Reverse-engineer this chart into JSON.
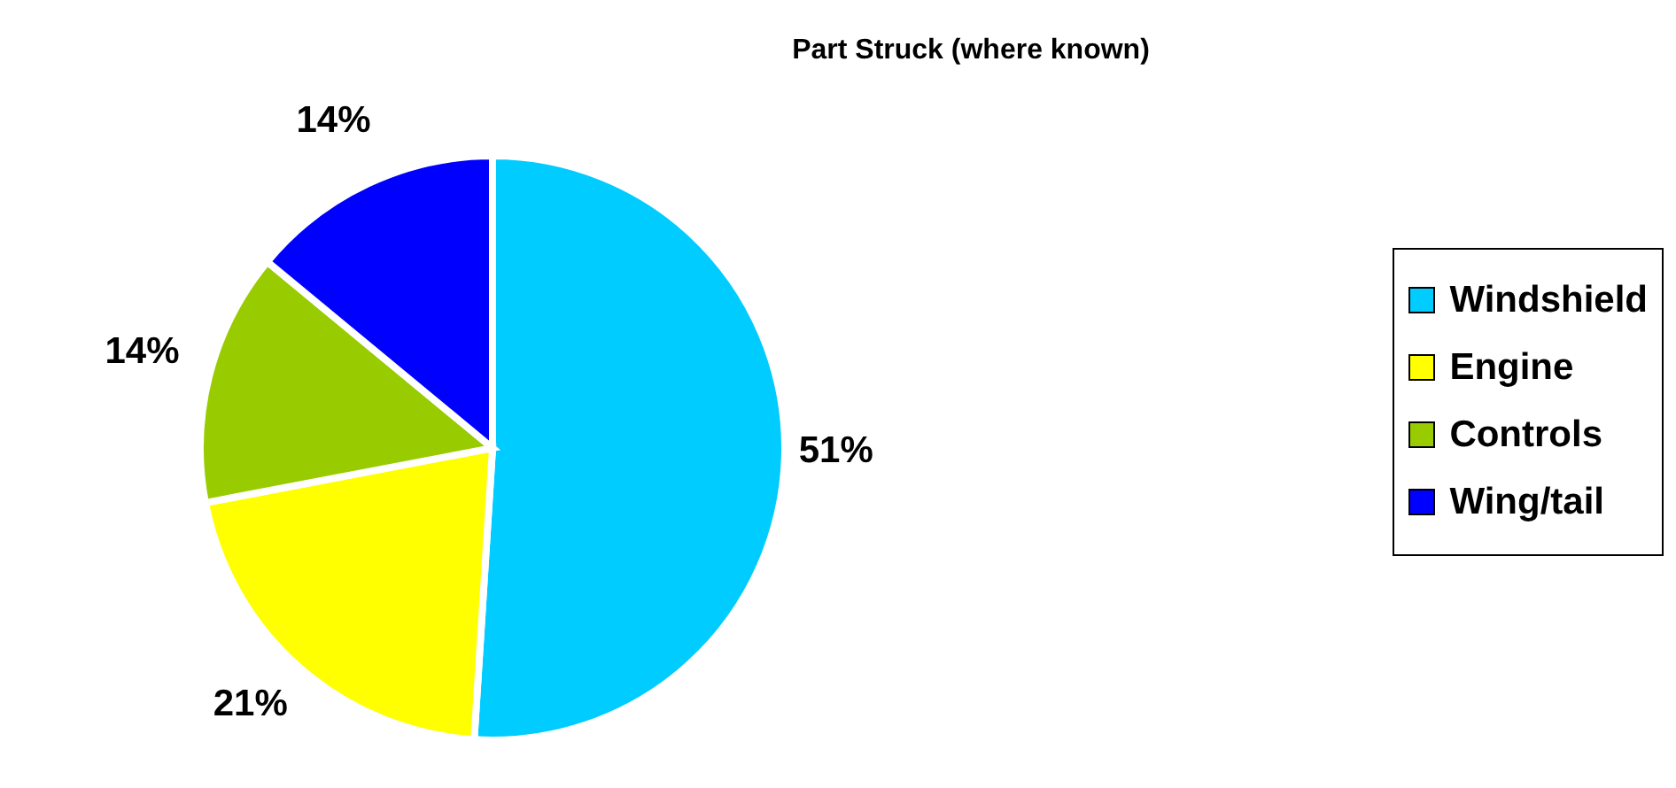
{
  "chart_data": {
    "type": "pie",
    "title": "Part Struck (where known)",
    "categories": [
      "Windshield",
      "Engine",
      "Controls",
      "Wing/tail"
    ],
    "values": [
      51,
      21,
      14,
      14
    ],
    "value_labels": [
      "51%",
      "21%",
      "14%",
      "14%"
    ],
    "colors": [
      "#00ccff",
      "#ffff00",
      "#99cc00",
      "#0000ff"
    ],
    "legend": "right"
  }
}
